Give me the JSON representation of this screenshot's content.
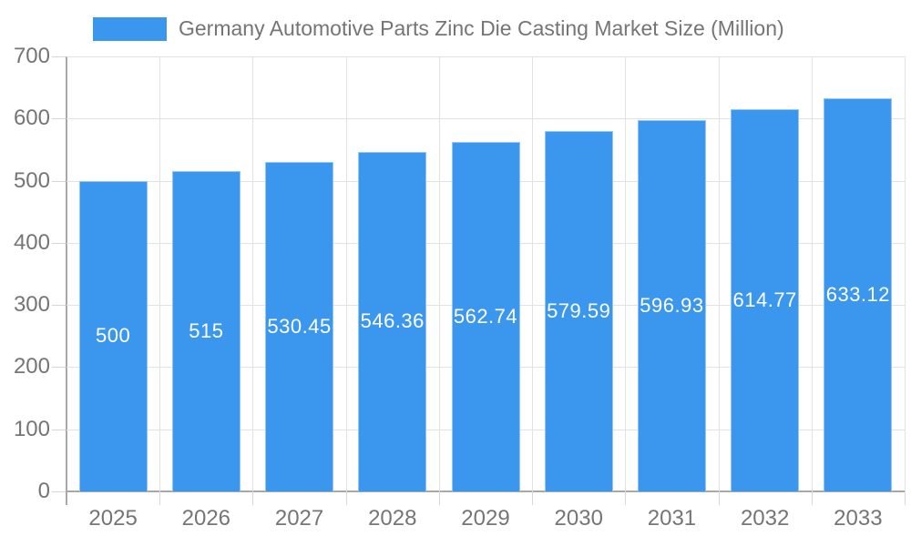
{
  "chart_data": {
    "type": "bar",
    "title": "Germany Automotive Parts Zinc Die Casting Market Size (Million)",
    "categories": [
      "2025",
      "2026",
      "2027",
      "2028",
      "2029",
      "2030",
      "2031",
      "2032",
      "2033"
    ],
    "series": [
      {
        "name": "Germany Automotive Parts Zinc Die Casting Market Size (Million)",
        "values": [
          500,
          515,
          530.45,
          546.36,
          562.74,
          579.59,
          596.93,
          614.77,
          633.12
        ]
      }
    ],
    "value_labels": [
      "500",
      "515",
      "530.45",
      "546.36",
      "562.74",
      "579.59",
      "596.93",
      "614.77",
      "633.12"
    ],
    "xlabel": "",
    "ylabel": "",
    "ylim": [
      0,
      700
    ],
    "ytick_interval": 100,
    "yticks": [
      0,
      100,
      200,
      300,
      400,
      500,
      600,
      700
    ],
    "ytick_labels": [
      "0",
      "100",
      "200",
      "300",
      "400",
      "500",
      "600",
      "700"
    ],
    "grid": true,
    "legend_position": "top",
    "colors": {
      "bar": "#3b97ee",
      "grid": "#e2e2e2",
      "axis": "#a8a8a8",
      "tick": "#d6d6d6",
      "label_text": "#757575",
      "value_text": "#ffffff"
    }
  }
}
